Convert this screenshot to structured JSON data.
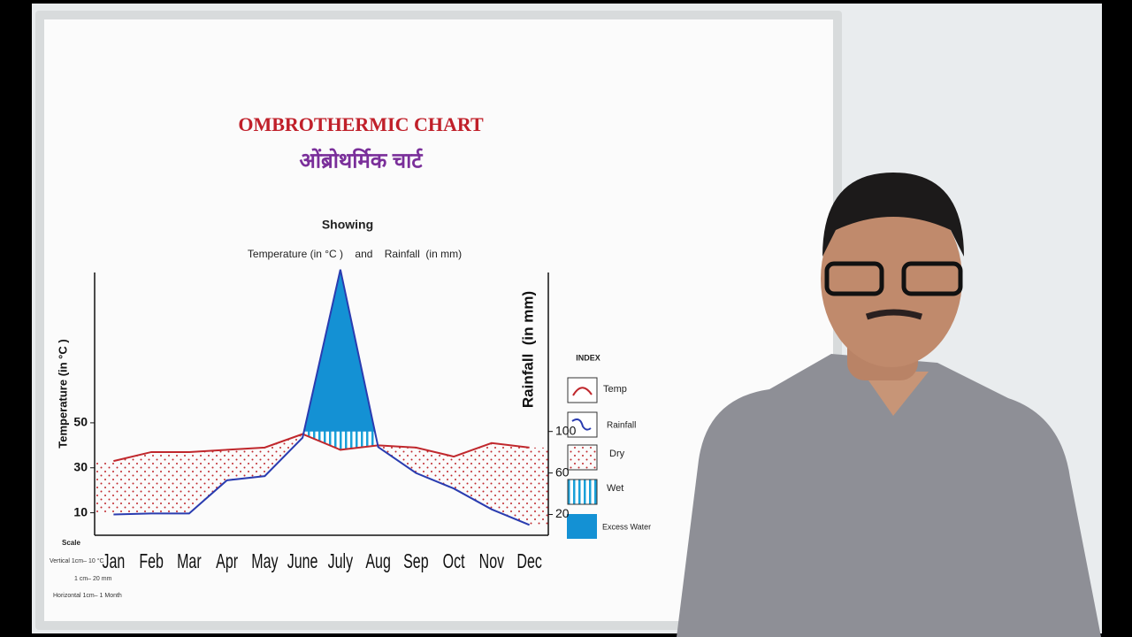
{
  "chart_data": {
    "type": "ombrothermic",
    "title": "OMBROTHERMIC CHART",
    "title_hindi": "ओंब्रोथर्मिक चार्ट",
    "subtitle_top": "Showing",
    "subtitle": "Temperature (in °C )    and    Rainfall  (in mm)",
    "ylabel": "Temperature (in °C )",
    "y2label": "Rainfall  (in mm)",
    "categories": [
      "Jan",
      "Feb",
      "Mar",
      "Apr",
      "May",
      "June",
      "July",
      "Aug",
      "Sep",
      "Oct",
      "Nov",
      "Dec"
    ],
    "series": [
      {
        "name": "Temp",
        "color": "#c0282d",
        "values": [
          33,
          37,
          37,
          38,
          39,
          45,
          38,
          40,
          39,
          35,
          41,
          39
        ]
      },
      {
        "name": "Rainfall",
        "color": "#2a3cb0",
        "axis": "y2",
        "values": [
          20,
          21,
          21,
          53,
          57,
          94,
          256,
          85,
          60,
          45,
          25,
          10
        ]
      }
    ],
    "ylim": [
      0,
      120
    ],
    "yticks": [
      10,
      30,
      50
    ],
    "y2lim": [
      0,
      260
    ],
    "y2ticks": [
      20,
      60,
      100
    ],
    "index": {
      "title": "INDEX",
      "items": [
        "Dry",
        "Wet",
        "Excess Water"
      ]
    },
    "scale": {
      "title": "Scale",
      "lines": [
        "Vertical 1cm– 10 °C",
        "1 cm– 20 mm",
        "Horizontal 1cm– 1 Month"
      ]
    }
  }
}
